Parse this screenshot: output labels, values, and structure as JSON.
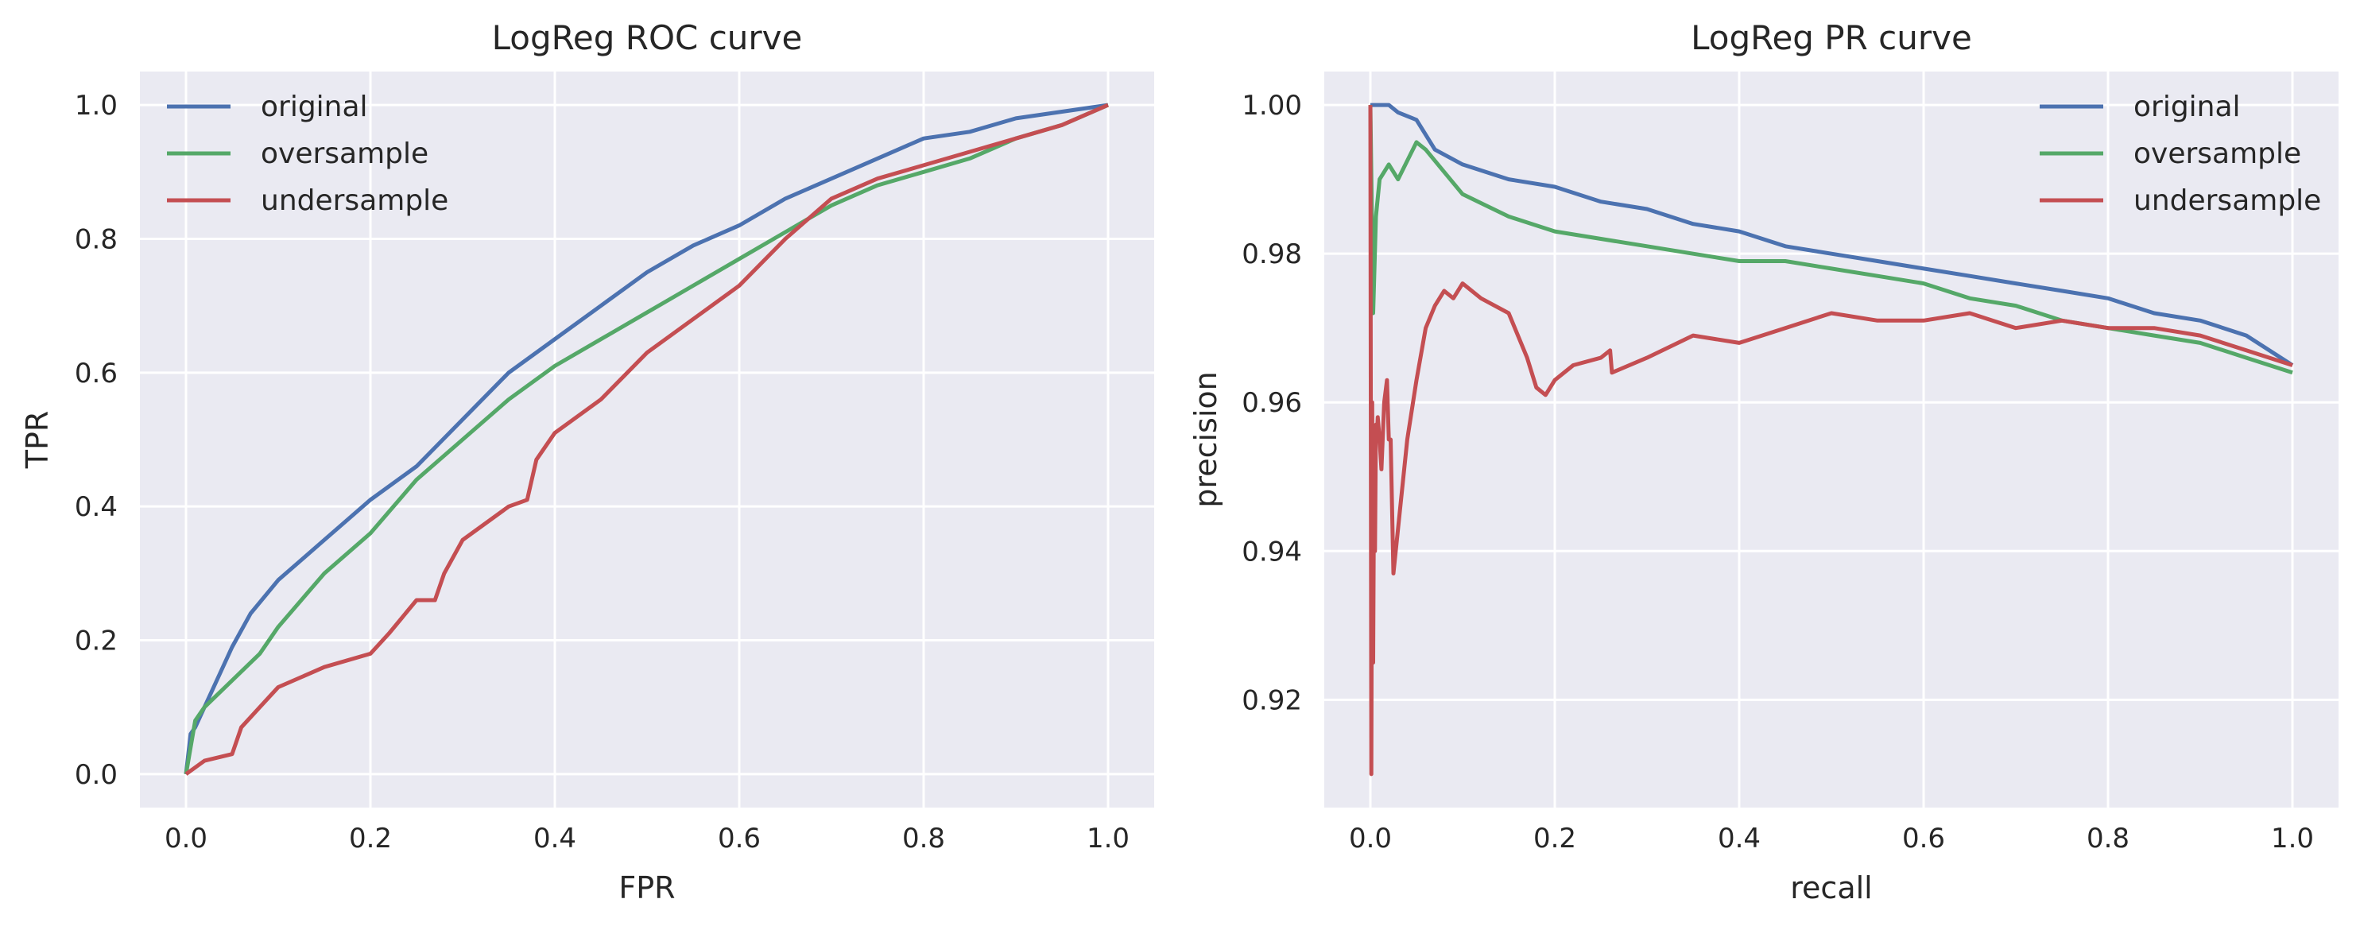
{
  "chart_data": [
    {
      "type": "line",
      "title": "LogReg ROC curve",
      "xlabel": "FPR",
      "ylabel": "TPR",
      "xlim": [
        -0.05,
        1.05
      ],
      "ylim": [
        -0.05,
        1.05
      ],
      "xticks": [
        0.0,
        0.2,
        0.4,
        0.6,
        0.8,
        1.0
      ],
      "yticks": [
        0.0,
        0.2,
        0.4,
        0.6,
        0.8,
        1.0
      ],
      "xtick_labels": [
        "0.0",
        "0.2",
        "0.4",
        "0.6",
        "0.8",
        "1.0"
      ],
      "ytick_labels": [
        "0.0",
        "0.2",
        "0.4",
        "0.6",
        "0.8",
        "1.0"
      ],
      "grid": true,
      "legend_position": "top-left",
      "series": [
        {
          "name": "original",
          "color": "#4c72b0",
          "x": [
            0.0,
            0.005,
            0.01,
            0.02,
            0.03,
            0.05,
            0.07,
            0.1,
            0.15,
            0.2,
            0.25,
            0.3,
            0.35,
            0.4,
            0.45,
            0.5,
            0.55,
            0.6,
            0.65,
            0.7,
            0.75,
            0.8,
            0.85,
            0.9,
            0.95,
            1.0
          ],
          "y": [
            0.0,
            0.06,
            0.07,
            0.1,
            0.13,
            0.19,
            0.24,
            0.29,
            0.35,
            0.41,
            0.46,
            0.53,
            0.6,
            0.65,
            0.7,
            0.75,
            0.79,
            0.82,
            0.86,
            0.89,
            0.92,
            0.95,
            0.96,
            0.98,
            0.99,
            1.0
          ]
        },
        {
          "name": "oversample",
          "color": "#55a868",
          "x": [
            0.0,
            0.005,
            0.01,
            0.02,
            0.05,
            0.08,
            0.1,
            0.15,
            0.2,
            0.25,
            0.3,
            0.35,
            0.4,
            0.45,
            0.5,
            0.55,
            0.6,
            0.65,
            0.7,
            0.75,
            0.8,
            0.85,
            0.9,
            0.95,
            1.0
          ],
          "y": [
            0.0,
            0.04,
            0.08,
            0.1,
            0.14,
            0.18,
            0.22,
            0.3,
            0.36,
            0.44,
            0.5,
            0.56,
            0.61,
            0.65,
            0.69,
            0.73,
            0.77,
            0.81,
            0.85,
            0.88,
            0.9,
            0.92,
            0.95,
            0.97,
            1.0
          ]
        },
        {
          "name": "undersample",
          "color": "#c44e52",
          "x": [
            0.0,
            0.01,
            0.02,
            0.05,
            0.06,
            0.08,
            0.1,
            0.15,
            0.2,
            0.22,
            0.25,
            0.27,
            0.28,
            0.3,
            0.35,
            0.37,
            0.38,
            0.4,
            0.45,
            0.5,
            0.55,
            0.6,
            0.65,
            0.7,
            0.75,
            0.8,
            0.85,
            0.9,
            0.95,
            1.0
          ],
          "y": [
            0.0,
            0.01,
            0.02,
            0.03,
            0.07,
            0.1,
            0.13,
            0.16,
            0.18,
            0.21,
            0.26,
            0.26,
            0.3,
            0.35,
            0.4,
            0.41,
            0.47,
            0.51,
            0.56,
            0.63,
            0.68,
            0.73,
            0.8,
            0.86,
            0.89,
            0.91,
            0.93,
            0.95,
            0.97,
            1.0
          ]
        }
      ]
    },
    {
      "type": "line",
      "title": "LogReg PR curve",
      "xlabel": "recall",
      "ylabel": "precision",
      "xlim": [
        -0.05,
        1.05
      ],
      "ylim": [
        0.9055,
        1.0045
      ],
      "xticks": [
        0.0,
        0.2,
        0.4,
        0.6,
        0.8,
        1.0
      ],
      "yticks": [
        0.92,
        0.94,
        0.96,
        0.98,
        1.0
      ],
      "xtick_labels": [
        "0.0",
        "0.2",
        "0.4",
        "0.6",
        "0.8",
        "1.0"
      ],
      "ytick_labels": [
        "0.92",
        "0.94",
        "0.96",
        "0.98",
        "1.00"
      ],
      "grid": true,
      "legend_position": "top-right",
      "series": [
        {
          "name": "original",
          "color": "#4c72b0",
          "x": [
            0.0,
            0.02,
            0.03,
            0.05,
            0.07,
            0.1,
            0.15,
            0.2,
            0.25,
            0.3,
            0.35,
            0.4,
            0.45,
            0.5,
            0.55,
            0.6,
            0.65,
            0.7,
            0.75,
            0.8,
            0.85,
            0.9,
            0.95,
            1.0
          ],
          "y": [
            1.0,
            1.0,
            0.999,
            0.998,
            0.994,
            0.992,
            0.99,
            0.989,
            0.987,
            0.986,
            0.984,
            0.983,
            0.981,
            0.98,
            0.979,
            0.978,
            0.977,
            0.976,
            0.975,
            0.974,
            0.972,
            0.971,
            0.969,
            0.965
          ]
        },
        {
          "name": "oversample",
          "color": "#55a868",
          "x": [
            0.0,
            0.003,
            0.006,
            0.01,
            0.02,
            0.03,
            0.05,
            0.06,
            0.08,
            0.1,
            0.15,
            0.2,
            0.25,
            0.3,
            0.35,
            0.4,
            0.45,
            0.5,
            0.55,
            0.6,
            0.65,
            0.7,
            0.75,
            0.8,
            0.85,
            0.9,
            0.95,
            1.0
          ],
          "y": [
            1.0,
            0.972,
            0.985,
            0.99,
            0.992,
            0.99,
            0.995,
            0.994,
            0.991,
            0.988,
            0.985,
            0.983,
            0.982,
            0.981,
            0.98,
            0.979,
            0.979,
            0.978,
            0.977,
            0.976,
            0.974,
            0.973,
            0.971,
            0.97,
            0.969,
            0.968,
            0.966,
            0.964
          ]
        },
        {
          "name": "undersample",
          "color": "#c44e52",
          "x": [
            0.0,
            0.001,
            0.002,
            0.003,
            0.004,
            0.005,
            0.006,
            0.007,
            0.008,
            0.01,
            0.012,
            0.015,
            0.018,
            0.02,
            0.022,
            0.025,
            0.03,
            0.04,
            0.05,
            0.06,
            0.07,
            0.08,
            0.09,
            0.1,
            0.12,
            0.15,
            0.17,
            0.18,
            0.19,
            0.2,
            0.22,
            0.25,
            0.26,
            0.262,
            0.3,
            0.35,
            0.4,
            0.45,
            0.5,
            0.55,
            0.6,
            0.65,
            0.7,
            0.75,
            0.8,
            0.85,
            0.9,
            0.95,
            1.0
          ],
          "y": [
            1.0,
            0.91,
            0.96,
            0.925,
            0.95,
            0.94,
            0.957,
            0.955,
            0.958,
            0.955,
            0.951,
            0.96,
            0.963,
            0.955,
            0.955,
            0.937,
            0.943,
            0.955,
            0.963,
            0.97,
            0.973,
            0.975,
            0.974,
            0.976,
            0.974,
            0.972,
            0.966,
            0.962,
            0.961,
            0.963,
            0.965,
            0.966,
            0.967,
            0.964,
            0.966,
            0.969,
            0.968,
            0.97,
            0.972,
            0.971,
            0.971,
            0.972,
            0.97,
            0.971,
            0.97,
            0.97,
            0.969,
            0.967,
            0.965
          ]
        }
      ]
    }
  ]
}
